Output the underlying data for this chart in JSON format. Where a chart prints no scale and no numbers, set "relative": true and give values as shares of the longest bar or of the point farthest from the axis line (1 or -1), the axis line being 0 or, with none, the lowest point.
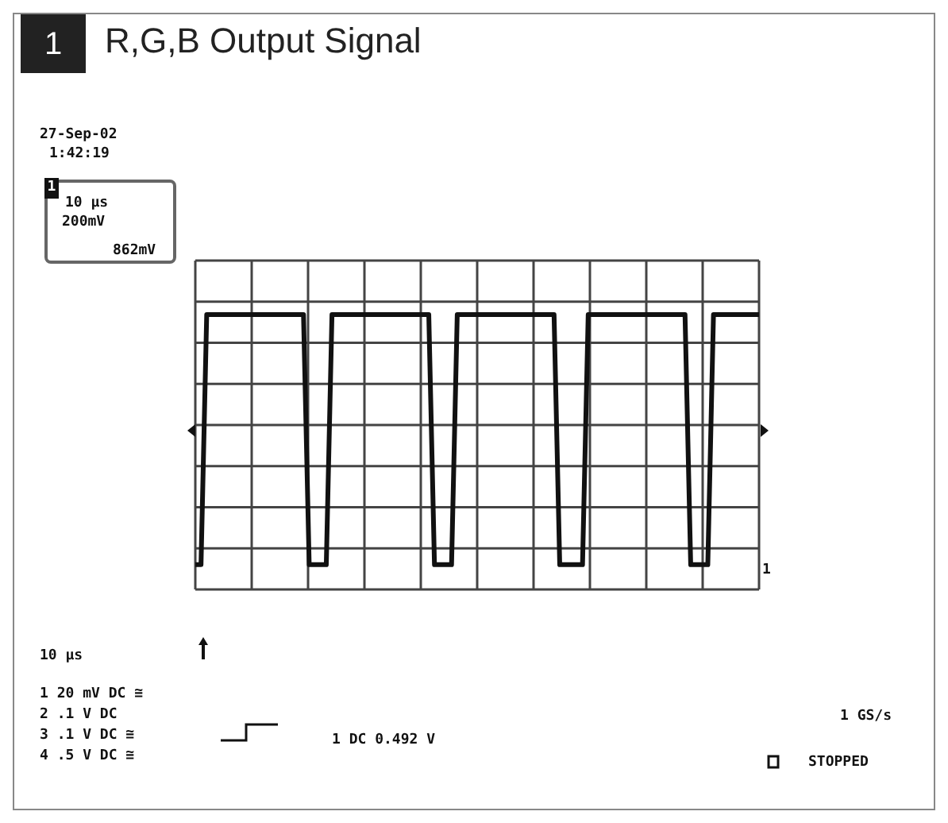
{
  "chart_data": {
    "type": "line",
    "title": "R,G,B Output Signal",
    "relative": true,
    "grid": true,
    "color": "#111111",
    "categories": [
      null,
      null,
      null,
      null,
      null,
      null,
      null,
      null,
      null,
      null,
      null,
      null,
      null,
      null,
      null,
      null,
      null,
      null,
      null,
      null,
      null,
      null,
      null,
      null,
      null,
      null,
      null,
      null,
      null,
      null,
      null,
      null,
      null,
      null,
      null,
      null,
      null,
      null,
      null,
      null,
      null,
      null,
      null,
      null,
      null,
      null,
      null,
      null,
      null,
      null,
      null,
      null,
      null,
      null,
      null,
      null,
      null,
      null,
      null,
      null,
      null,
      null,
      null,
      null,
      null,
      null,
      null,
      null,
      null,
      null,
      null,
      null,
      null,
      null,
      null,
      null,
      null,
      null,
      null,
      null,
      null,
      null,
      null,
      null,
      null,
      null,
      null,
      null,
      null,
      null,
      null,
      null,
      null,
      null,
      null,
      null,
      null,
      null,
      null,
      null
    ],
    "values": [
      0.09,
      0.09,
      1,
      1,
      1,
      1,
      1,
      1,
      1,
      1,
      1,
      1,
      1,
      1,
      1,
      1,
      1,
      1,
      1,
      1,
      0.09,
      0.09,
      0.09,
      0.09,
      1,
      1,
      1,
      1,
      1,
      1,
      1,
      1,
      1,
      1,
      1,
      1,
      1,
      1,
      1,
      1,
      1,
      1,
      0.09,
      0.09,
      0.09,
      0.09,
      1,
      1,
      1,
      1,
      1,
      1,
      1,
      1,
      1,
      1,
      1,
      1,
      1,
      1,
      1,
      1,
      1,
      1,
      0.09,
      0.09,
      0.09,
      0.09,
      0.09,
      1,
      1,
      1,
      1,
      1,
      1,
      1,
      1,
      1,
      1,
      1,
      1,
      1,
      1,
      1,
      1,
      1,
      1,
      0.09,
      0.09,
      0.09,
      0.09,
      1,
      1,
      1,
      1,
      1,
      1,
      1,
      1,
      1
    ],
    "annotations": [
      "1",
      "27-Sep-02",
      "1:42:19",
      "10 µs",
      "200mV",
      "862mV",
      "10 µs",
      "1 20 mV DC ≅",
      "2 .1 V DC",
      "3 .1 V DC ≅",
      "4 .5 V DC ≅",
      "1 DC 0.492 V",
      "1 GS/s",
      "STOPPED",
      "1",
      "1"
    ]
  }
}
